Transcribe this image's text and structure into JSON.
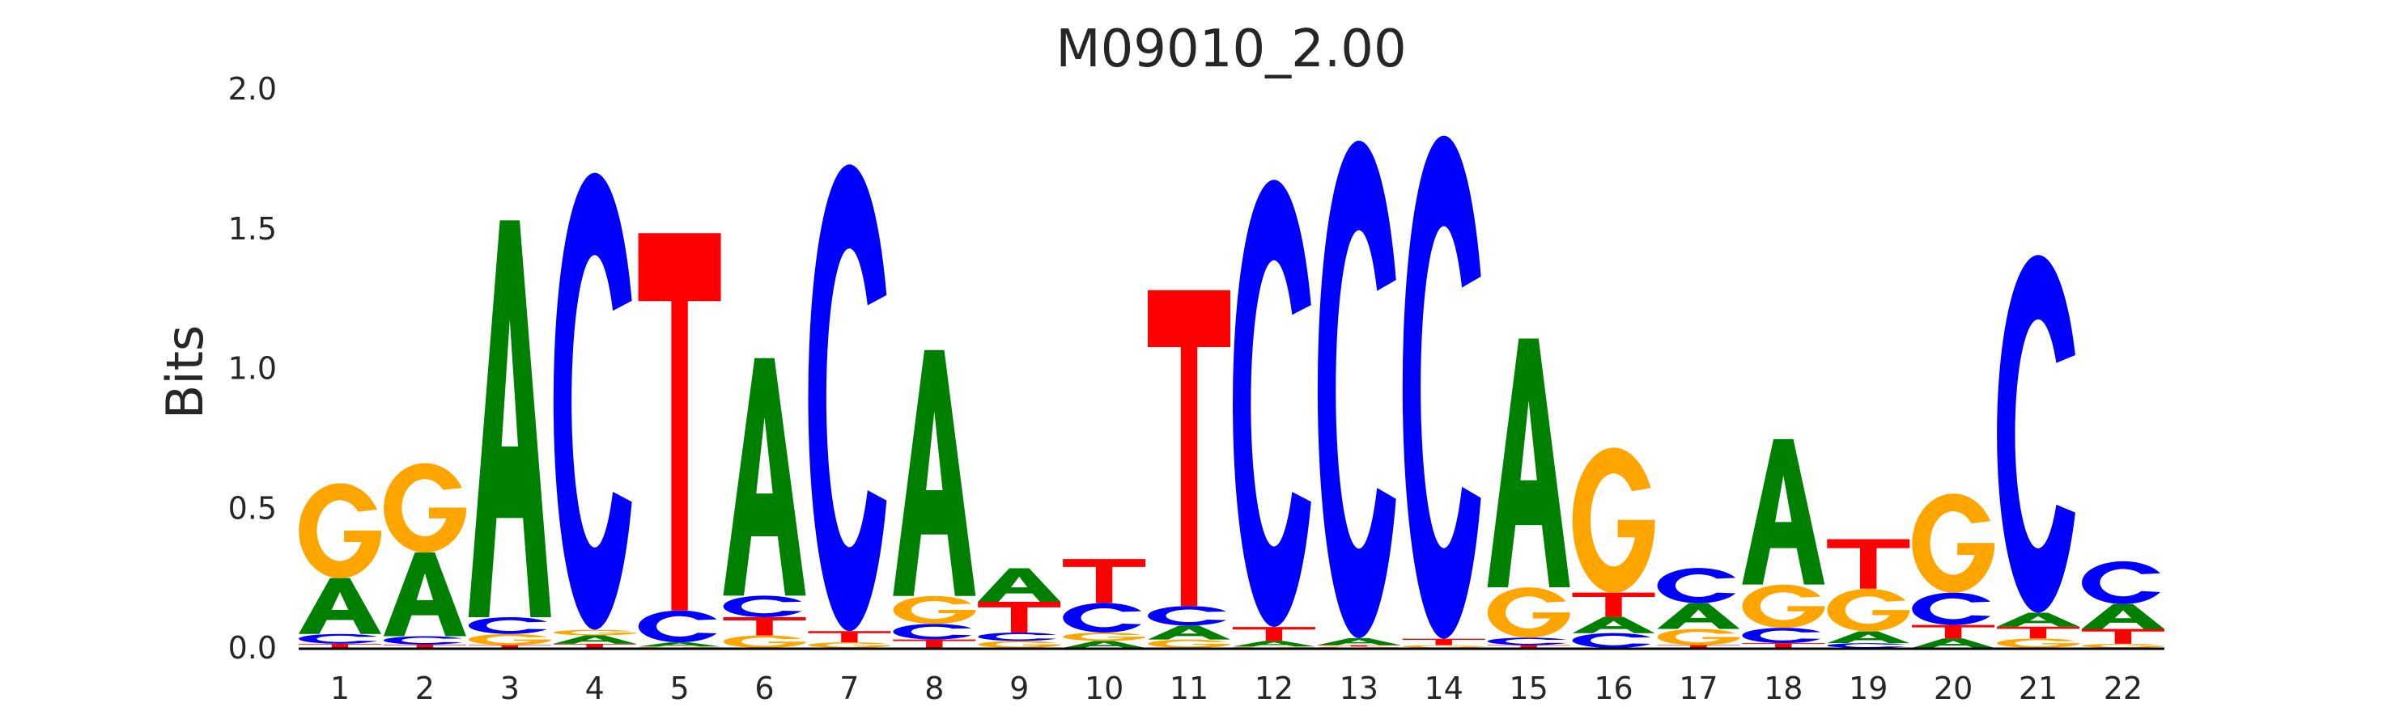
{
  "chart_data": {
    "type": "sequence-logo",
    "title": "M09010_2.00",
    "ylabel": "Bits",
    "xlabel": "",
    "ylim": [
      0,
      2.0
    ],
    "yticks": [
      "0.0",
      "0.5",
      "1.0",
      "1.5",
      "2.0"
    ],
    "colors": {
      "A": "#008000",
      "C": "#0000ff",
      "G": "#ffa500",
      "T": "#ff0000"
    },
    "positions": [
      {
        "pos": "1",
        "stack": [
          [
            "T",
            0.015
          ],
          [
            "C",
            0.035
          ],
          [
            "A",
            0.2
          ],
          [
            "G",
            0.34
          ]
        ]
      },
      {
        "pos": "2",
        "stack": [
          [
            "T",
            0.012
          ],
          [
            "C",
            0.03
          ],
          [
            "A",
            0.3
          ],
          [
            "G",
            0.32
          ]
        ]
      },
      {
        "pos": "3",
        "stack": [
          [
            "T",
            0.01
          ],
          [
            "G",
            0.04
          ],
          [
            "C",
            0.06
          ],
          [
            "A",
            1.42
          ]
        ]
      },
      {
        "pos": "4",
        "stack": [
          [
            "T",
            0.015
          ],
          [
            "A",
            0.03
          ],
          [
            "G",
            0.02
          ],
          [
            "C",
            1.635
          ]
        ]
      },
      {
        "pos": "5",
        "stack": [
          [
            "G",
            0.005
          ],
          [
            "A",
            0.015
          ],
          [
            "C",
            0.114
          ],
          [
            "T",
            1.35
          ]
        ]
      },
      {
        "pos": "6",
        "stack": [
          [
            "G",
            0.045
          ],
          [
            "T",
            0.065
          ],
          [
            "C",
            0.077
          ],
          [
            "A",
            0.85
          ]
        ]
      },
      {
        "pos": "7",
        "stack": [
          [
            "G",
            0.02
          ],
          [
            "T",
            0.04
          ],
          [
            "C",
            1.67
          ]
        ]
      },
      {
        "pos": "8",
        "stack": [
          [
            "T",
            0.03
          ],
          [
            "C",
            0.056
          ],
          [
            "G",
            0.1
          ],
          [
            "A",
            0.88
          ]
        ]
      },
      {
        "pos": "9",
        "stack": [
          [
            "G",
            0.025
          ],
          [
            "C",
            0.03
          ],
          [
            "T",
            0.11
          ],
          [
            "A",
            0.12
          ]
        ]
      },
      {
        "pos": "10",
        "stack": [
          [
            "A",
            0.025
          ],
          [
            "G",
            0.03
          ],
          [
            "C",
            0.106
          ],
          [
            "T",
            0.157
          ]
        ]
      },
      {
        "pos": "11",
        "stack": [
          [
            "G",
            0.03
          ],
          [
            "A",
            0.05
          ],
          [
            "C",
            0.07
          ],
          [
            "T",
            1.13
          ]
        ]
      },
      {
        "pos": "12",
        "stack": [
          [
            "G",
            0.005
          ],
          [
            "A",
            0.02
          ],
          [
            "T",
            0.05
          ],
          [
            "C",
            1.6
          ]
        ]
      },
      {
        "pos": "13",
        "stack": [
          [
            "G",
            0.005
          ],
          [
            "T",
            0.005
          ],
          [
            "A",
            0.025
          ],
          [
            "C",
            1.78
          ]
        ]
      },
      {
        "pos": "14",
        "stack": [
          [
            "G",
            0.01
          ],
          [
            "T",
            0.023
          ],
          [
            "C",
            1.8
          ]
        ]
      },
      {
        "pos": "15",
        "stack": [
          [
            "T",
            0.01
          ],
          [
            "C",
            0.027
          ],
          [
            "G",
            0.18
          ],
          [
            "A",
            0.89
          ]
        ]
      },
      {
        "pos": "16",
        "stack": [
          [
            "C",
            0.053
          ],
          [
            "A",
            0.058
          ],
          [
            "T",
            0.087
          ],
          [
            "G",
            0.52
          ]
        ]
      },
      {
        "pos": "17",
        "stack": [
          [
            "T",
            0.01
          ],
          [
            "G",
            0.058
          ],
          [
            "A",
            0.092
          ],
          [
            "C",
            0.126
          ]
        ]
      },
      {
        "pos": "18",
        "stack": [
          [
            "T",
            0.017
          ],
          [
            "C",
            0.055
          ],
          [
            "G",
            0.155
          ],
          [
            "A",
            0.52
          ]
        ]
      },
      {
        "pos": "19",
        "stack": [
          [
            "C",
            0.017
          ],
          [
            "A",
            0.042
          ],
          [
            "G",
            0.153
          ],
          [
            "T",
            0.177
          ]
        ]
      },
      {
        "pos": "20",
        "stack": [
          [
            "A",
            0.034
          ],
          [
            "T",
            0.048
          ],
          [
            "C",
            0.116
          ],
          [
            "G",
            0.355
          ]
        ]
      },
      {
        "pos": "21",
        "stack": [
          [
            "G",
            0.034
          ],
          [
            "T",
            0.042
          ],
          [
            "A",
            0.05
          ],
          [
            "C",
            1.28
          ]
        ]
      },
      {
        "pos": "22",
        "stack": [
          [
            "G",
            0.015
          ],
          [
            "T",
            0.053
          ],
          [
            "A",
            0.089
          ],
          [
            "C",
            0.153
          ]
        ]
      }
    ]
  }
}
